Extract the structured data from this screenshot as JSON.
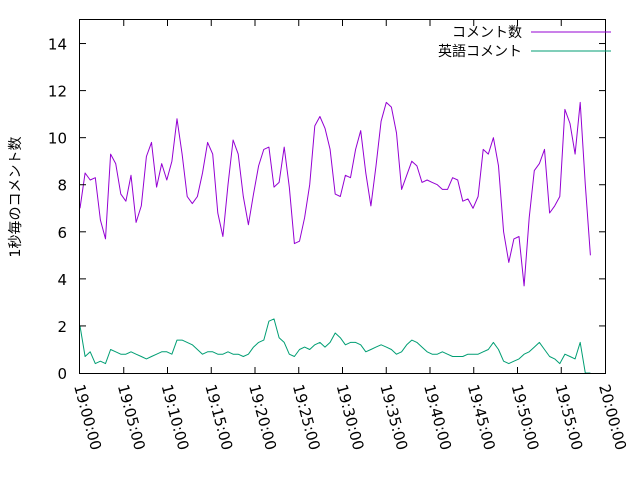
{
  "chart_data": {
    "type": "line",
    "title": "",
    "xlabel": "",
    "ylabel": "1秒毎のコメント数",
    "xlim": [
      "19:00:00",
      "20:00:00"
    ],
    "ylim": [
      0,
      15
    ],
    "x_ticks": [
      "19:00:00",
      "19:05:00",
      "19:10:00",
      "19:15:00",
      "19:20:00",
      "19:25:00",
      "19:30:00",
      "19:35:00",
      "19:40:00",
      "19:45:00",
      "19:50:00",
      "19:55:00",
      "20:00:00"
    ],
    "y_ticks": [
      0,
      2,
      4,
      6,
      8,
      10,
      12,
      14
    ],
    "grid": false,
    "legend_position": "top-right",
    "x_points": [
      "19:00:00",
      "19:00:35",
      "19:01:10",
      "19:01:45",
      "19:02:20",
      "19:02:55",
      "19:03:30",
      "19:04:05",
      "19:04:40",
      "19:05:15",
      "19:05:50",
      "19:06:25",
      "19:07:00",
      "19:07:35",
      "19:08:10",
      "19:08:45",
      "19:09:20",
      "19:09:55",
      "19:10:30",
      "19:11:05",
      "19:11:40",
      "19:12:15",
      "19:12:50",
      "19:13:25",
      "19:14:00",
      "19:14:35",
      "19:15:10",
      "19:15:45",
      "19:16:20",
      "19:16:55",
      "19:17:30",
      "19:18:05",
      "19:18:40",
      "19:19:15",
      "19:19:50",
      "19:20:25",
      "19:21:00",
      "19:21:35",
      "19:22:10",
      "19:22:45",
      "19:23:20",
      "19:23:55",
      "19:24:30",
      "19:25:05",
      "19:25:40",
      "19:26:15",
      "19:26:50",
      "19:27:25",
      "19:28:00",
      "19:28:35",
      "19:29:10",
      "19:29:45",
      "19:30:20",
      "19:30:55",
      "19:31:30",
      "19:32:05",
      "19:32:40",
      "19:33:15",
      "19:33:50",
      "19:34:25",
      "19:35:00",
      "19:35:35",
      "19:36:10",
      "19:36:45",
      "19:37:20",
      "19:37:55",
      "19:38:30",
      "19:39:05",
      "19:39:40",
      "19:40:15",
      "19:40:50",
      "19:41:25",
      "19:42:00",
      "19:42:35",
      "19:43:10",
      "19:43:45",
      "19:44:20",
      "19:44:55",
      "19:45:30",
      "19:46:05",
      "19:46:40",
      "19:47:15",
      "19:47:50",
      "19:48:25",
      "19:49:00",
      "19:49:35",
      "19:50:10",
      "19:50:45",
      "19:51:20",
      "19:51:55",
      "19:52:30",
      "19:53:05",
      "19:53:40",
      "19:54:15",
      "19:54:50",
      "19:55:25",
      "19:56:00",
      "19:56:35",
      "19:57:10",
      "19:57:45",
      "19:58:20",
      "19:58:55",
      "19:59:30",
      "20:00:00"
    ],
    "series": [
      {
        "name": "コメント数",
        "color": "#9400d3",
        "values": [
          7.0,
          8.5,
          8.2,
          8.3,
          6.5,
          5.7,
          9.3,
          8.9,
          7.6,
          7.3,
          8.4,
          6.4,
          7.1,
          9.2,
          9.8,
          7.9,
          8.9,
          8.2,
          9.0,
          10.8,
          9.3,
          7.5,
          7.2,
          7.5,
          8.5,
          9.8,
          9.3,
          6.8,
          5.8,
          8.0,
          9.9,
          9.3,
          7.5,
          6.3,
          7.6,
          8.8,
          9.5,
          9.6,
          7.9,
          8.1,
          9.6,
          7.9,
          5.5,
          5.6,
          6.6,
          8.0,
          10.5,
          10.9,
          10.4,
          9.5,
          7.6,
          7.5,
          8.4,
          8.3,
          9.5,
          10.3,
          8.5,
          7.1,
          8.8,
          10.7,
          11.5,
          11.3,
          10.2,
          7.8,
          8.4,
          9.0,
          8.8,
          8.1,
          8.2,
          8.1,
          8.0,
          7.8,
          7.8,
          8.3,
          8.2,
          7.3,
          7.4,
          7.0,
          7.5,
          9.5,
          9.3,
          10.0,
          8.8,
          6.0,
          4.7,
          5.7,
          5.8,
          3.7,
          6.6,
          8.6,
          8.9,
          9.5,
          6.8,
          7.1,
          7.5,
          11.2,
          10.6,
          9.3,
          11.5,
          8.0,
          5.0
        ]
      },
      {
        "name": "英語コメント",
        "color": "#009e73",
        "values": [
          2.0,
          0.7,
          0.9,
          0.4,
          0.5,
          0.4,
          1.0,
          0.9,
          0.8,
          0.8,
          0.9,
          0.8,
          0.7,
          0.6,
          0.7,
          0.8,
          0.9,
          0.9,
          0.8,
          1.4,
          1.4,
          1.3,
          1.2,
          1.0,
          0.8,
          0.9,
          0.9,
          0.8,
          0.8,
          0.9,
          0.8,
          0.8,
          0.7,
          0.8,
          1.1,
          1.3,
          1.4,
          2.2,
          2.3,
          1.5,
          1.3,
          0.8,
          0.7,
          1.0,
          1.1,
          1.0,
          1.2,
          1.3,
          1.1,
          1.3,
          1.7,
          1.5,
          1.2,
          1.3,
          1.3,
          1.2,
          0.9,
          1.0,
          1.1,
          1.2,
          1.1,
          1.0,
          0.8,
          0.9,
          1.2,
          1.4,
          1.3,
          1.1,
          0.9,
          0.8,
          0.8,
          0.9,
          0.8,
          0.7,
          0.7,
          0.7,
          0.8,
          0.8,
          0.8,
          0.9,
          1.0,
          1.3,
          1.0,
          0.5,
          0.4,
          0.5,
          0.6,
          0.8,
          0.9,
          1.1,
          1.3,
          1.0,
          0.7,
          0.6,
          0.4,
          0.8,
          0.7,
          0.6,
          1.3,
          0.0,
          0.0
        ]
      }
    ]
  }
}
